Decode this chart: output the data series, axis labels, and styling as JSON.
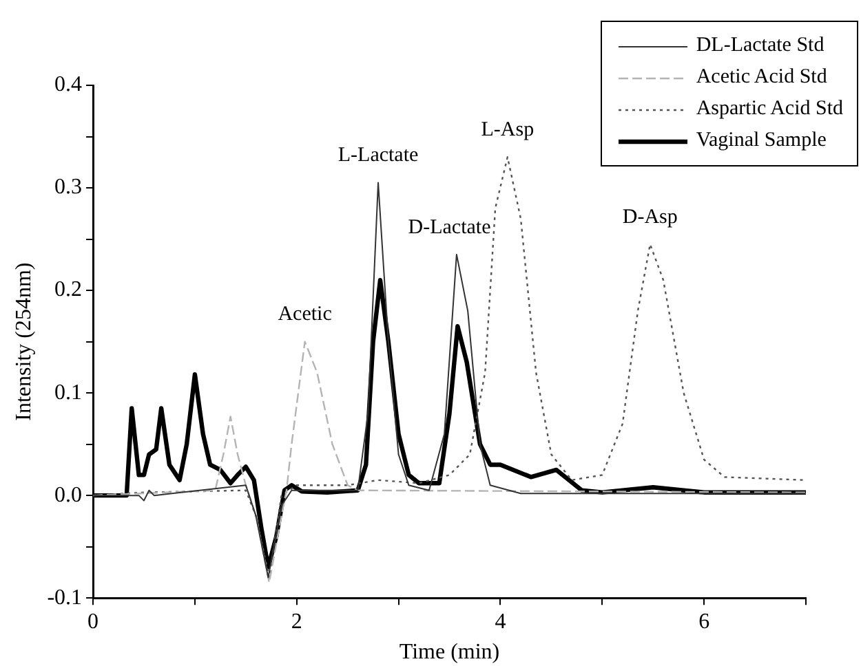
{
  "chart_data": {
    "type": "line",
    "xlabel": "Time (min)",
    "ylabel": "Intensity (254nm)",
    "xlim": [
      0,
      7
    ],
    "xticks": [
      0,
      {
        "value": 1,
        "label": null
      },
      2,
      {
        "value": 3,
        "label": null
      },
      4,
      {
        "value": 5,
        "label": null
      },
      6,
      {
        "value": 7,
        "label": null
      }
    ],
    "ylim": [
      -0.1,
      0.4
    ],
    "yticks": [
      {
        "value": -0.1,
        "label": "-0.1"
      },
      {
        "value": -0.05,
        "label": null
      },
      {
        "value": 0,
        "label": "0.0"
      },
      {
        "value": 0.05,
        "label": null
      },
      {
        "value": 0.1,
        "label": "0.1"
      },
      {
        "value": 0.15,
        "label": null
      },
      {
        "value": 0.2,
        "label": "0.2"
      },
      {
        "value": 0.25,
        "label": null
      },
      {
        "value": 0.3,
        "label": "0.3"
      },
      {
        "value": 0.35,
        "label": null
      },
      {
        "value": 0.4,
        "label": "0.4"
      }
    ],
    "grid": false,
    "legend": "top right",
    "marker": "none",
    "series": [
      {
        "name": "DL-Lactate Std",
        "color": "#333333",
        "line_style": "solid",
        "x": [
          0,
          0.45,
          0.5,
          0.55,
          0.6,
          1.5,
          1.6,
          1.72,
          1.85,
          1.95,
          2.6,
          2.7,
          2.8,
          2.9,
          3.0,
          3.1,
          3.3,
          3.45,
          3.57,
          3.68,
          3.8,
          3.9,
          4.2,
          7
        ],
        "values": [
          0,
          0,
          -0.005,
          0.005,
          0,
          0.01,
          -0.02,
          -0.08,
          -0.01,
          0.005,
          0.005,
          0.08,
          0.305,
          0.15,
          0.04,
          0.01,
          0.005,
          0.06,
          0.235,
          0.18,
          0.05,
          0.01,
          0.002,
          0.002
        ]
      },
      {
        "name": "Acetic Acid Std",
        "color": "#b4b4b4",
        "line_style": "dashed",
        "x": [
          0,
          1.2,
          1.28,
          1.35,
          1.42,
          1.5,
          1.6,
          1.73,
          1.85,
          1.9,
          1.95,
          2.08,
          2.2,
          2.35,
          2.5,
          2.6,
          7
        ],
        "values": [
          0,
          0.005,
          0.04,
          0.077,
          0.04,
          0.01,
          -0.02,
          -0.085,
          -0.02,
          0.005,
          0.05,
          0.15,
          0.12,
          0.05,
          0.01,
          0.005,
          0.003
        ]
      },
      {
        "name": "Aspartic Acid Std",
        "color": "#555555",
        "line_style": "dotted",
        "x": [
          0,
          0.5,
          1.5,
          1.6,
          1.73,
          1.85,
          2.0,
          2.5,
          2.8,
          3.2,
          3.5,
          3.7,
          3.85,
          3.95,
          4.07,
          4.2,
          4.35,
          4.5,
          4.7,
          5.0,
          5.2,
          5.35,
          5.47,
          5.6,
          5.8,
          6.0,
          6.2,
          7
        ],
        "values": [
          0,
          0.003,
          0.005,
          -0.02,
          -0.08,
          0,
          0.01,
          0.01,
          0.015,
          0.012,
          0.02,
          0.04,
          0.12,
          0.28,
          0.33,
          0.27,
          0.12,
          0.04,
          0.015,
          0.02,
          0.07,
          0.18,
          0.245,
          0.21,
          0.1,
          0.035,
          0.018,
          0.015
        ]
      },
      {
        "name": "Vaginal Sample",
        "color": "#000000",
        "line_style": "solid",
        "x": [
          0,
          0.33,
          0.38,
          0.45,
          0.5,
          0.55,
          0.62,
          0.67,
          0.75,
          0.85,
          0.92,
          1.0,
          1.08,
          1.15,
          1.25,
          1.35,
          1.42,
          1.5,
          1.58,
          1.65,
          1.72,
          1.8,
          1.88,
          1.95,
          2.05,
          2.3,
          2.6,
          2.68,
          2.75,
          2.82,
          2.9,
          3.0,
          3.1,
          3.2,
          3.4,
          3.5,
          3.58,
          3.67,
          3.8,
          3.9,
          4.0,
          4.3,
          4.55,
          4.8,
          5.0,
          5.5,
          5.8,
          6.0,
          7
        ],
        "values": [
          0,
          0,
          0.085,
          0.02,
          0.02,
          0.04,
          0.045,
          0.085,
          0.03,
          0.015,
          0.05,
          0.118,
          0.06,
          0.03,
          0.025,
          0.012,
          0.02,
          0.028,
          0.015,
          -0.03,
          -0.07,
          -0.04,
          0.005,
          0.01,
          0.004,
          0.003,
          0.005,
          0.03,
          0.15,
          0.21,
          0.15,
          0.06,
          0.02,
          0.012,
          0.012,
          0.08,
          0.165,
          0.13,
          0.05,
          0.03,
          0.03,
          0.018,
          0.025,
          0.005,
          0.003,
          0.008,
          0.005,
          0.003,
          0.003
        ]
      }
    ],
    "annotations": [
      {
        "text": "Acetic",
        "x": 2.08,
        "y": 0.15
      },
      {
        "text": "L-Lactate",
        "x": 2.8,
        "y": 0.305
      },
      {
        "text": "D-Lactate",
        "x": 3.5,
        "y": 0.235
      },
      {
        "text": "L-Asp",
        "x": 4.07,
        "y": 0.33
      },
      {
        "text": "D-Asp",
        "x": 5.47,
        "y": 0.245
      }
    ]
  }
}
